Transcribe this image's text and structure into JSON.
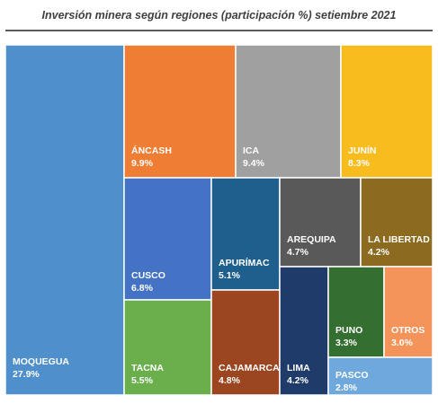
{
  "chart_data": {
    "type": "treemap",
    "title": "Inversión minera según regiones (participación %) setiembre 2021",
    "unit": "%",
    "items": [
      {
        "name": "MOQUEGUA",
        "value": 27.9,
        "value_label": "27.9%",
        "color": "#4f8fcc"
      },
      {
        "name": "ÁNCASH",
        "value": 9.9,
        "value_label": "9.9%",
        "color": "#ef7d33"
      },
      {
        "name": "ICA",
        "value": 9.4,
        "value_label": "9.4%",
        "color": "#a0a0a0"
      },
      {
        "name": "JUNÍN",
        "value": 8.3,
        "value_label": "8.3%",
        "color": "#f8bc1f"
      },
      {
        "name": "CUSCO",
        "value": 6.8,
        "value_label": "6.8%",
        "color": "#4472c4"
      },
      {
        "name": "APURÍMAC",
        "value": 5.1,
        "value_label": "5.1%",
        "color": "#1f5f8e"
      },
      {
        "name": "AREQUIPA",
        "value": 4.7,
        "value_label": "4.7%",
        "color": "#595959"
      },
      {
        "name": "LA LIBERTAD",
        "value": 4.2,
        "value_label": "4.2%",
        "color": "#8c6a1f"
      },
      {
        "name": "TACNA",
        "value": 5.5,
        "value_label": "5.5%",
        "color": "#6aaf4c"
      },
      {
        "name": "CAJAMARCA",
        "value": 4.8,
        "value_label": "4.8%",
        "color": "#9b4620"
      },
      {
        "name": "LIMA",
        "value": 4.2,
        "value_label": "4.2%",
        "color": "#1f3b6a"
      },
      {
        "name": "PUNO",
        "value": 3.3,
        "value_label": "3.3%",
        "color": "#356e31"
      },
      {
        "name": "OTROS",
        "value": 3.0,
        "value_label": "3.0%",
        "color": "#f4945a"
      },
      {
        "name": "PASCO",
        "value": 2.8,
        "value_label": "2.8%",
        "color": "#6fa8dc"
      }
    ]
  }
}
